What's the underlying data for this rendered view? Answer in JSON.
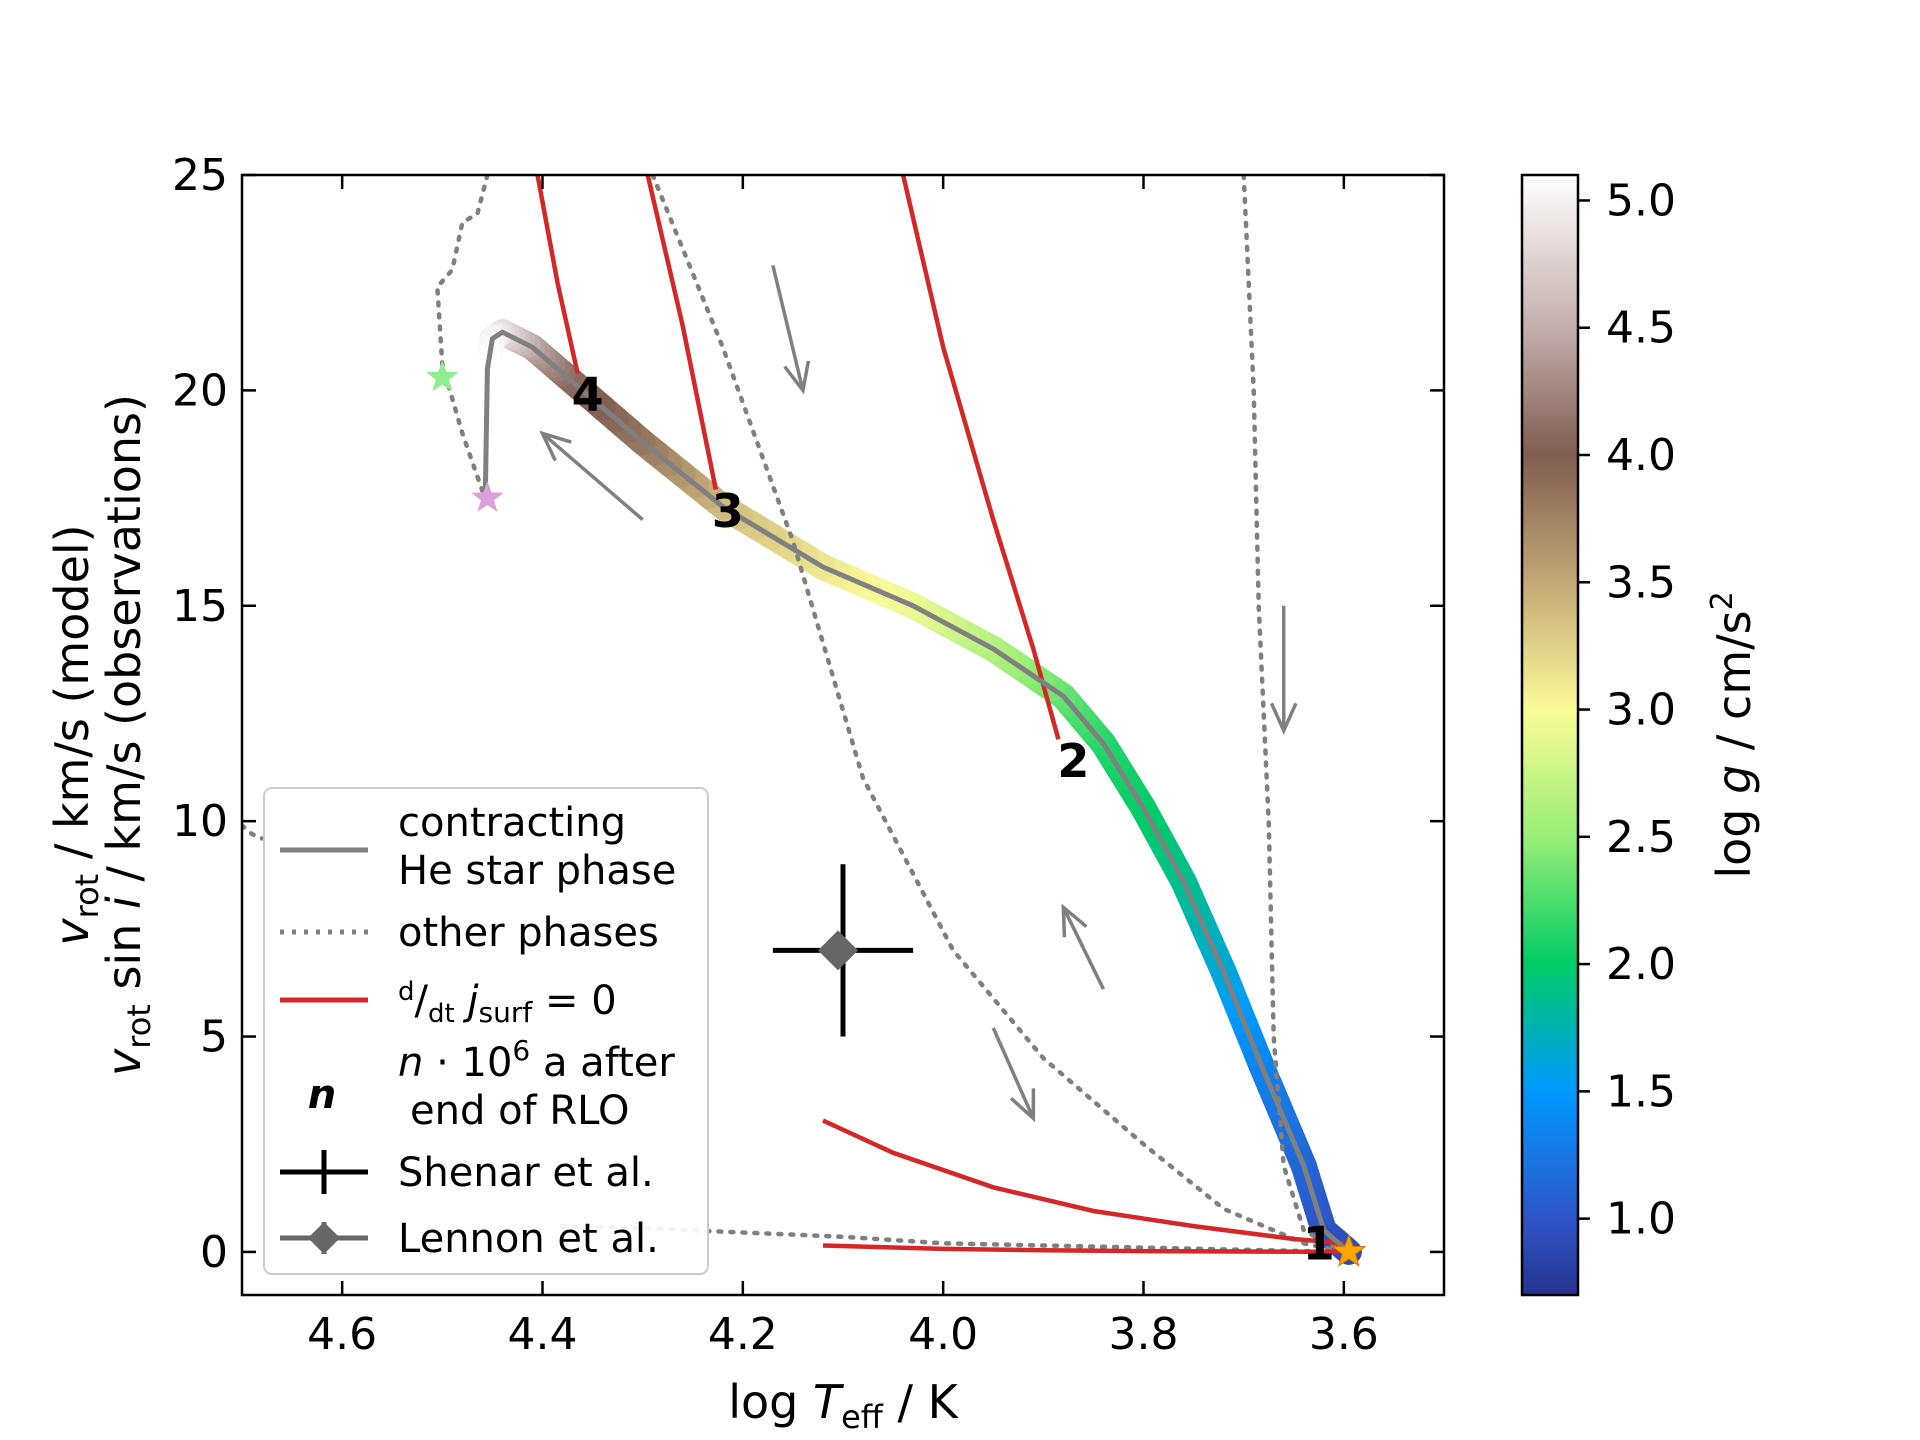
{
  "chart_data": {
    "type": "line",
    "xlabel": "log T_eff / K",
    "ylabel_line1": "v_rot / km/s (model)",
    "ylabel_line2": "v_rot sin i / km/s (observations)",
    "xlim": [
      4.7,
      3.5
    ],
    "ylim": [
      -1,
      25
    ],
    "xticks": [
      4.6,
      4.4,
      4.2,
      4.0,
      3.8,
      3.6
    ],
    "xtick_labels": [
      "4.6",
      "4.4",
      "4.2",
      "4.0",
      "3.8",
      "3.6"
    ],
    "yticks": [
      0,
      5,
      10,
      15,
      20,
      25
    ],
    "ytick_labels": [
      "0",
      "5",
      "10",
      "15",
      "20",
      "25"
    ],
    "colorbar": {
      "label": "log g / cm/s²",
      "range": [
        0.7,
        5.1
      ],
      "ticks": [
        1.0,
        1.5,
        2.0,
        2.5,
        3.0,
        3.5,
        4.0,
        4.5,
        5.0
      ],
      "tick_labels": [
        "1.0",
        "1.5",
        "2.0",
        "2.5",
        "3.0",
        "3.5",
        "4.0",
        "4.5",
        "5.0"
      ],
      "colormap_stops": [
        {
          "v": 0.7,
          "color": "#26338f"
        },
        {
          "v": 1.0,
          "color": "#2f55c8"
        },
        {
          "v": 1.5,
          "color": "#0099ff"
        },
        {
          "v": 2.0,
          "color": "#00cc66"
        },
        {
          "v": 2.5,
          "color": "#99ee77"
        },
        {
          "v": 3.0,
          "color": "#fbfb99"
        },
        {
          "v": 3.5,
          "color": "#c2a876"
        },
        {
          "v": 4.0,
          "color": "#7f5d52"
        },
        {
          "v": 4.5,
          "color": "#c3afad"
        },
        {
          "v": 5.1,
          "color": "#ffffff"
        }
      ]
    },
    "series": [
      {
        "name": "contracting He star phase",
        "style": "solid",
        "color": "#808080",
        "points": [
          {
            "x": 3.595,
            "y": 0.0,
            "logg": 0.9
          },
          {
            "x": 3.62,
            "y": 0.5,
            "logg": 0.95
          },
          {
            "x": 3.64,
            "y": 2.0,
            "logg": 1.1
          },
          {
            "x": 3.68,
            "y": 4.2,
            "logg": 1.3
          },
          {
            "x": 3.72,
            "y": 6.5,
            "logg": 1.6
          },
          {
            "x": 3.76,
            "y": 8.6,
            "logg": 1.85
          },
          {
            "x": 3.8,
            "y": 10.3,
            "logg": 2.0
          },
          {
            "x": 3.84,
            "y": 11.8,
            "logg": 2.1
          },
          {
            "x": 3.88,
            "y": 12.9,
            "logg": 2.3
          },
          {
            "x": 3.95,
            "y": 14.0,
            "logg": 2.6
          },
          {
            "x": 4.03,
            "y": 15.0,
            "logg": 2.9
          },
          {
            "x": 4.12,
            "y": 15.9,
            "logg": 3.1
          },
          {
            "x": 4.22,
            "y": 17.3,
            "logg": 3.35
          },
          {
            "x": 4.3,
            "y": 18.8,
            "logg": 3.8
          },
          {
            "x": 4.38,
            "y": 20.4,
            "logg": 4.1
          },
          {
            "x": 4.41,
            "y": 21.0,
            "logg": 4.4
          },
          {
            "x": 4.44,
            "y": 21.35,
            "logg": 4.8
          },
          {
            "x": 4.45,
            "y": 21.2,
            "logg": 5.0
          },
          {
            "x": 4.455,
            "y": 20.5,
            "logg": 5.1
          },
          {
            "x": 4.457,
            "y": 17.7,
            "logg": 5.1
          }
        ]
      },
      {
        "name": "other phases",
        "style": "dotted",
        "color": "#808080",
        "segments": [
          [
            {
              "x": 4.456,
              "y": 17.4
            },
            {
              "x": 4.48,
              "y": 19.0
            },
            {
              "x": 4.5,
              "y": 20.6
            },
            {
              "x": 4.505,
              "y": 22.4
            },
            {
              "x": 4.49,
              "y": 22.8
            },
            {
              "x": 4.48,
              "y": 23.9
            },
            {
              "x": 4.465,
              "y": 24.1
            },
            {
              "x": 4.455,
              "y": 25.0
            }
          ],
          [
            {
              "x": 4.29,
              "y": 25.0
            },
            {
              "x": 4.22,
              "y": 21.0
            },
            {
              "x": 4.15,
              "y": 16.5
            },
            {
              "x": 4.08,
              "y": 11.0
            },
            {
              "x": 3.99,
              "y": 7.0
            },
            {
              "x": 3.9,
              "y": 4.5
            },
            {
              "x": 3.8,
              "y": 2.5
            },
            {
              "x": 3.72,
              "y": 1.0
            },
            {
              "x": 3.64,
              "y": 0.2
            },
            {
              "x": 3.6,
              "y": 0.0
            }
          ],
          [
            {
              "x": 3.7,
              "y": 25.0
            },
            {
              "x": 3.69,
              "y": 20.0
            },
            {
              "x": 3.685,
              "y": 15.0
            },
            {
              "x": 3.675,
              "y": 10.0
            },
            {
              "x": 3.67,
              "y": 5.0
            },
            {
              "x": 3.66,
              "y": 2.0
            },
            {
              "x": 3.64,
              "y": 0.5
            },
            {
              "x": 3.6,
              "y": 0.0
            }
          ],
          [
            {
              "x": 4.7,
              "y": 9.9
            },
            {
              "x": 4.69,
              "y": 9.7
            },
            {
              "x": 4.68,
              "y": 9.6
            }
          ],
          [
            {
              "x": 4.38,
              "y": 0.6
            },
            {
              "x": 4.3,
              "y": 0.55
            },
            {
              "x": 4.2,
              "y": 0.45
            },
            {
              "x": 4.1,
              "y": 0.35
            },
            {
              "x": 4.0,
              "y": 0.2
            },
            {
              "x": 3.9,
              "y": 0.15
            },
            {
              "x": 3.8,
              "y": 0.1
            },
            {
              "x": 3.7,
              "y": 0.05
            },
            {
              "x": 3.6,
              "y": 0.0
            }
          ]
        ]
      },
      {
        "name": "d/dt j_surf = 0",
        "style": "solid",
        "color": "#d62728",
        "segments": [
          [
            {
              "x": 4.405,
              "y": 25.0
            },
            {
              "x": 4.385,
              "y": 22.5
            },
            {
              "x": 4.365,
              "y": 20.4
            }
          ],
          [
            {
              "x": 4.295,
              "y": 25.0
            },
            {
              "x": 4.26,
              "y": 21.5
            },
            {
              "x": 4.227,
              "y": 17.7
            }
          ],
          [
            {
              "x": 4.04,
              "y": 25.0
            },
            {
              "x": 4.0,
              "y": 21.0
            },
            {
              "x": 3.95,
              "y": 17.0
            },
            {
              "x": 3.91,
              "y": 14.0
            },
            {
              "x": 3.885,
              "y": 11.9
            }
          ],
          [
            {
              "x": 4.12,
              "y": 3.05
            },
            {
              "x": 4.05,
              "y": 2.3
            },
            {
              "x": 3.95,
              "y": 1.5
            },
            {
              "x": 3.85,
              "y": 0.95
            },
            {
              "x": 3.75,
              "y": 0.6
            },
            {
              "x": 3.65,
              "y": 0.3
            },
            {
              "x": 3.6,
              "y": 0.2
            }
          ],
          [
            {
              "x": 4.12,
              "y": 0.15
            },
            {
              "x": 4.0,
              "y": 0.07
            },
            {
              "x": 3.9,
              "y": 0.04
            },
            {
              "x": 3.8,
              "y": 0.02
            },
            {
              "x": 3.6,
              "y": 0.0
            }
          ]
        ]
      }
    ],
    "time_markers": [
      {
        "label": "1",
        "x": 3.625,
        "y": 0.2
      },
      {
        "label": "2",
        "x": 3.87,
        "y": 11.4
      },
      {
        "label": "3",
        "x": 4.215,
        "y": 17.2
      },
      {
        "label": "4",
        "x": 4.355,
        "y": 19.9
      }
    ],
    "star_markers": [
      {
        "name": "start",
        "x": 3.595,
        "y": 0.0,
        "color": "#ffa500"
      },
      {
        "name": "green",
        "x": 4.5,
        "y": 20.3,
        "color": "#90ee90"
      },
      {
        "name": "violet",
        "x": 4.455,
        "y": 17.5,
        "color": "#dda0dd"
      }
    ],
    "direction_arrows": [
      {
        "from": {
          "x": 4.17,
          "y": 22.9
        },
        "to": {
          "x": 4.14,
          "y": 20.0
        }
      },
      {
        "from": {
          "x": 4.3,
          "y": 17.0
        },
        "to": {
          "x": 4.4,
          "y": 19.0
        }
      },
      {
        "from": {
          "x": 3.66,
          "y": 15.0
        },
        "to": {
          "x": 3.66,
          "y": 12.1
        }
      },
      {
        "from": {
          "x": 3.84,
          "y": 6.1
        },
        "to": {
          "x": 3.88,
          "y": 8.0
        }
      },
      {
        "from": {
          "x": 3.95,
          "y": 5.2
        },
        "to": {
          "x": 3.91,
          "y": 3.1
        }
      }
    ],
    "observations": [
      {
        "name": "Shenar et al.",
        "x": 4.1,
        "y": 7.0,
        "xerr": 0.07,
        "yerr": 2.0,
        "marker": "none",
        "color": "#000000"
      },
      {
        "name": "Lennon et al.",
        "x": 4.105,
        "y": 7.0,
        "marker": "diamond",
        "color": "#666666"
      }
    ],
    "legend": {
      "position": "lower-left",
      "entries": [
        {
          "kind": "solid-gray",
          "line1": "contracting",
          "line2": "He star phase"
        },
        {
          "kind": "dotted-gray",
          "line1": "other phases"
        },
        {
          "kind": "solid-red",
          "line1": "d/dt j_surf = 0"
        },
        {
          "kind": "time-marker",
          "symbol": "n",
          "line1": "n · 10⁶ a after",
          "line2": "end of RLO"
        },
        {
          "kind": "errorbar",
          "line1": "Shenar et al."
        },
        {
          "kind": "diamond",
          "line1": "Lennon et al."
        }
      ]
    }
  }
}
